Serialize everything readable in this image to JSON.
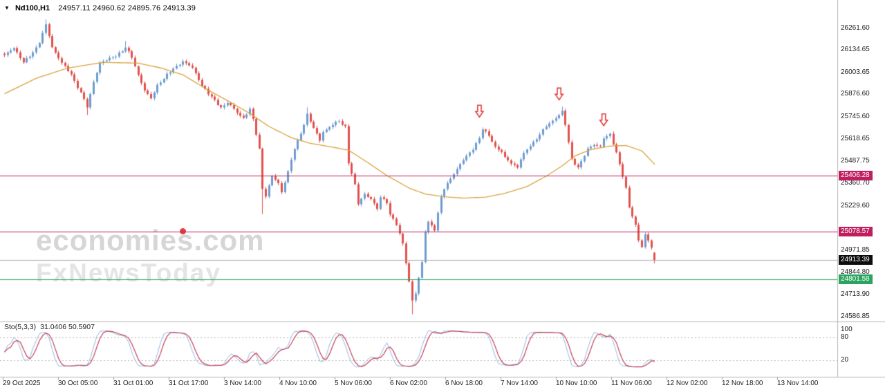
{
  "window": {
    "dropdown_icon": "▼",
    "symbol": "Nd100,H1",
    "ohlc_text": "24957.11 24960.62 24895.76 24913.39"
  },
  "watermark": {
    "brand": "economies.com",
    "sub": "FxNewsToday",
    "accent_color": "#e14040"
  },
  "chart_data": {
    "type": "candlestick",
    "title": "Nd100,H1",
    "symbol": "Nd100",
    "timeframe": "H1",
    "bars": 205,
    "current_bar": {
      "open": 24957.11,
      "high": 24960.62,
      "low": 24895.76,
      "close": 24913.39
    },
    "y_axis": {
      "range": [
        24570,
        26320
      ],
      "ticks": [
        26261.6,
        26134.65,
        26003.65,
        25876.6,
        25745.6,
        25618.65,
        25487.75,
        25360.7,
        25229.6,
        24971.85,
        24844.8,
        24713.9,
        24586.85
      ]
    },
    "x_axis": {
      "labels": [
        "29 Oct 2025",
        "30 Oct 05:00",
        "31 Oct 01:00",
        "31 Oct 17:00",
        "3 Nov 14:00",
        "4 Nov 10:00",
        "5 Nov 06:00",
        "6 Nov 02:00",
        "6 Nov 18:00",
        "7 Nov 14:00",
        "10 Nov 10:00",
        "11 Nov 06:00",
        "12 Nov 02:00",
        "12 Nov 18:00",
        "13 Nov 14:00"
      ]
    },
    "levels": [
      {
        "value": 25406.28,
        "line_color": "#c01f5f",
        "badge_color": "#c01f5f",
        "current": false
      },
      {
        "value": 25078.57,
        "line_color": "#c01f5f",
        "badge_color": "#c01f5f",
        "current": false
      },
      {
        "value": 24801.58,
        "line_color": "#2aa45e",
        "badge_color": "#2aa45e",
        "current": false
      },
      {
        "value": 24913.39,
        "line_color": "#a8a8a8",
        "badge_color": "#0d0d0d",
        "current": true
      }
    ],
    "arrows": [
      {
        "bar": 149,
        "price": 25745
      },
      {
        "bar": 174,
        "price": 25845
      },
      {
        "bar": 188,
        "price": 25695
      }
    ],
    "close_anchors": [
      [
        0,
        26100
      ],
      [
        3,
        26150
      ],
      [
        6,
        26060
      ],
      [
        9,
        26120
      ],
      [
        11,
        26180
      ],
      [
        13,
        26280
      ],
      [
        15,
        26150
      ],
      [
        18,
        26060
      ],
      [
        21,
        25990
      ],
      [
        23,
        25920
      ],
      [
        25,
        25850
      ],
      [
        26,
        25800
      ],
      [
        28,
        25950
      ],
      [
        30,
        26060
      ],
      [
        34,
        26090
      ],
      [
        37,
        26130
      ],
      [
        38,
        26150
      ],
      [
        40,
        26090
      ],
      [
        42,
        25990
      ],
      [
        44,
        25900
      ],
      [
        46,
        25850
      ],
      [
        48,
        25930
      ],
      [
        51,
        25990
      ],
      [
        54,
        26040
      ],
      [
        56,
        26070
      ],
      [
        59,
        26030
      ],
      [
        62,
        25930
      ],
      [
        64,
        25880
      ],
      [
        66,
        25840
      ],
      [
        68,
        25800
      ],
      [
        70,
        25830
      ],
      [
        73,
        25770
      ],
      [
        75,
        25740
      ],
      [
        77,
        25790
      ],
      [
        78,
        25730
      ],
      [
        80,
        25560
      ],
      [
        81,
        25330
      ],
      [
        82,
        25290
      ],
      [
        84,
        25400
      ],
      [
        86,
        25360
      ],
      [
        87,
        25310
      ],
      [
        89,
        25430
      ],
      [
        91,
        25560
      ],
      [
        93,
        25650
      ],
      [
        95,
        25760
      ],
      [
        97,
        25680
      ],
      [
        99,
        25610
      ],
      [
        100,
        25660
      ],
      [
        103,
        25700
      ],
      [
        105,
        25720
      ],
      [
        107,
        25690
      ],
      [
        108,
        25480
      ],
      [
        110,
        25350
      ],
      [
        111,
        25240
      ],
      [
        113,
        25300
      ],
      [
        115,
        25270
      ],
      [
        117,
        25210
      ],
      [
        118,
        25280
      ],
      [
        120,
        25250
      ],
      [
        121,
        25180
      ],
      [
        123,
        25120
      ],
      [
        125,
        25010
      ],
      [
        126,
        24900
      ],
      [
        128,
        24680
      ],
      [
        129,
        24720
      ],
      [
        131,
        24900
      ],
      [
        132,
        25080
      ],
      [
        133,
        25140
      ],
      [
        135,
        25090
      ],
      [
        137,
        25280
      ],
      [
        138,
        25330
      ],
      [
        140,
        25390
      ],
      [
        142,
        25440
      ],
      [
        143,
        25470
      ],
      [
        145,
        25520
      ],
      [
        147,
        25560
      ],
      [
        149,
        25620
      ],
      [
        150,
        25675
      ],
      [
        152,
        25640
      ],
      [
        154,
        25570
      ],
      [
        156,
        25540
      ],
      [
        157,
        25510
      ],
      [
        159,
        25480
      ],
      [
        161,
        25450
      ],
      [
        162,
        25500
      ],
      [
        164,
        25560
      ],
      [
        166,
        25600
      ],
      [
        168,
        25640
      ],
      [
        169,
        25670
      ],
      [
        171,
        25710
      ],
      [
        173,
        25740
      ],
      [
        175,
        25775
      ],
      [
        176,
        25700
      ],
      [
        178,
        25500
      ],
      [
        180,
        25450
      ],
      [
        182,
        25520
      ],
      [
        183,
        25560
      ],
      [
        185,
        25590
      ],
      [
        187,
        25570
      ],
      [
        188,
        25620
      ],
      [
        190,
        25645
      ],
      [
        192,
        25540
      ],
      [
        193,
        25470
      ],
      [
        195,
        25330
      ],
      [
        196,
        25220
      ],
      [
        198,
        25120
      ],
      [
        199,
        25030
      ],
      [
        200,
        24990
      ],
      [
        201,
        25060
      ],
      [
        203,
        24990
      ],
      [
        204,
        24913.39
      ]
    ],
    "ma_anchors": [
      [
        0,
        25880
      ],
      [
        10,
        25970
      ],
      [
        20,
        26030
      ],
      [
        31,
        26062
      ],
      [
        42,
        26058
      ],
      [
        49,
        26030
      ],
      [
        56,
        25990
      ],
      [
        64,
        25900
      ],
      [
        70,
        25840
      ],
      [
        77,
        25765
      ],
      [
        83,
        25690
      ],
      [
        90,
        25625
      ],
      [
        96,
        25592
      ],
      [
        103,
        25570
      ],
      [
        108,
        25552
      ],
      [
        114,
        25480
      ],
      [
        120,
        25405
      ],
      [
        127,
        25332
      ],
      [
        132,
        25298
      ],
      [
        138,
        25282
      ],
      [
        144,
        25274
      ],
      [
        151,
        25280
      ],
      [
        157,
        25302
      ],
      [
        164,
        25342
      ],
      [
        170,
        25402
      ],
      [
        175,
        25462
      ],
      [
        179,
        25520
      ],
      [
        184,
        25556
      ],
      [
        190,
        25576
      ],
      [
        195,
        25580
      ],
      [
        200,
        25548
      ],
      [
        204,
        25470
      ]
    ],
    "wick_overrides": [
      {
        "bar": 13,
        "high": 26312
      },
      {
        "bar": 26,
        "low": 25757
      },
      {
        "bar": 38,
        "high": 26186
      },
      {
        "bar": 81,
        "low": 25182
      },
      {
        "bar": 95,
        "high": 25801
      },
      {
        "bar": 128,
        "low": 24600
      },
      {
        "bar": 175,
        "high": 25806
      }
    ],
    "colors": {
      "up": "#6d9bd1",
      "down": "#e1504c",
      "ma": "#d8a33e",
      "arrow": "#e23b3b"
    },
    "indicator": {
      "name": "Sto(5,3,3)",
      "values_text": "31.0406 50.5907",
      "params": {
        "k": 5,
        "d": 3,
        "slowing": 3
      },
      "axis_labels": [
        100,
        80,
        20
      ],
      "levels": [
        80,
        20
      ],
      "main_color": "#8fb6de",
      "signal_color": "#c23b55"
    }
  }
}
